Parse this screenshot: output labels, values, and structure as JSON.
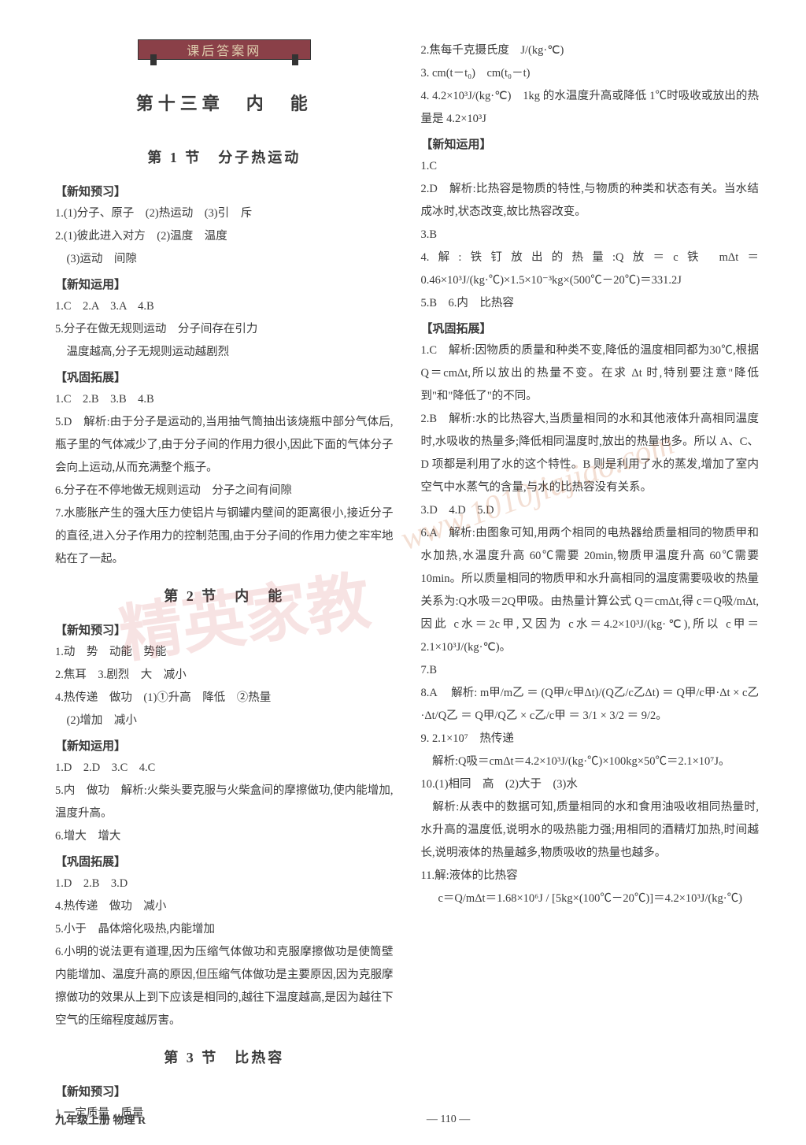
{
  "header_banner": "课后答案网",
  "chapter_title": "第十三章　内　能",
  "section1": {
    "title": "第 1 节　分子热运动",
    "preview_label": "【新知预习】",
    "preview": [
      "1.(1)分子、原子　(2)热运动　(3)引　斥",
      "2.(1)彼此进入对方　(2)温度　温度",
      "　(3)运动　间隙"
    ],
    "apply_label": "【新知运用】",
    "apply": [
      "1.C　2.A　3.A　4.B",
      "5.分子在做无规则运动　分子间存在引力",
      "　温度越高,分子无规则运动越剧烈"
    ],
    "consolidate_label": "【巩固拓展】",
    "consolidate": [
      "1.C　2.B　3.B　4.B",
      "5.D　解析:由于分子是运动的,当用抽气筒抽出该烧瓶中部分气体后,瓶子里的气体减少了,由于分子间的作用力很小,因此下面的气体分子会向上运动,从而充满整个瓶子。",
      "6.分子在不停地做无规则运动　分子之间有间隙",
      "7.水膨胀产生的强大压力使铝片与钢罐内壁间的距离很小,接近分子的直径,进入分子作用力的控制范围,由于分子间的作用力使之牢牢地粘在了一起。"
    ]
  },
  "section2": {
    "title": "第 2 节　内　能",
    "preview_label": "【新知预习】",
    "preview": [
      "1.动　势　动能　势能",
      "2.焦耳　3.剧烈　大　减小",
      "4.热传递　做功　(1)①升高　降低　②热量",
      "　(2)增加　减小"
    ],
    "apply_label": "【新知运用】",
    "apply": [
      "1.D　2.D　3.C　4.C",
      "5.内　做功　解析:火柴头要克服与火柴盒间的摩擦做功,使内能增加,温度升高。",
      "6.增大　增大"
    ],
    "consolidate_label": "【巩固拓展】",
    "consolidate": [
      "1.D　2.B　3.D",
      "4.热传递　做功　减小",
      "5.小于　晶体熔化吸热,内能增加",
      "6.小明的说法更有道理,因为压缩气体做功和克服摩擦做功是使筒壁内能增加、温度升高的原因,但压缩气体做功是主要原因,因为克服摩擦做功的效果从上到下应该是相同的,越往下温度越高,是因为越往下空气的压缩程度越厉害。"
    ]
  },
  "section3": {
    "title": "第 3 节　比热容",
    "preview_label": "【新知预习】",
    "preview_left": [
      "1.一定质量　质量"
    ],
    "preview_right": [
      "2.焦每千克摄氏度　J/(kg·℃)",
      "3. cm(t－t₀)　cm(t₀－t)",
      "4. 4.2×10³J/(kg·℃)　1kg 的水温度升高或降低 1℃时吸收或放出的热量是 4.2×10³J"
    ],
    "apply_label": "【新知运用】",
    "apply": [
      "1.C",
      "2.D　解析:比热容是物质的特性,与物质的种类和状态有关。当水结成冰时,状态改变,故比热容改变。",
      "3.B",
      "4.解:铁钉放出的热量:Q放＝c铁 mΔt＝0.46×10³J/(kg·℃)×1.5×10⁻³kg×(500℃－20℃)＝331.2J",
      "5.B　6.内　比热容"
    ],
    "consolidate_label": "【巩固拓展】",
    "consolidate": [
      "1.C　解析:因物质的质量和种类不变,降低的温度相同都为30℃,根据 Q＝cmΔt,所以放出的热量不变。在求 Δt 时,特别要注意\"降低到\"和\"降低了\"的不同。",
      "2.B　解析:水的比热容大,当质量相同的水和其他液体升高相同温度时,水吸收的热量多;降低相同温度时,放出的热量也多。所以 A、C、D 项都是利用了水的这个特性。B 则是利用了水的蒸发,增加了室内空气中水蒸气的含量,与水的比热容没有关系。",
      "3.D　4.D　5.D",
      "6.A　解析:由图象可知,用两个相同的电热器给质量相同的物质甲和水加热,水温度升高 60℃需要 20min,物质甲温度升高 60℃需要 10min。所以质量相同的物质甲和水升高相同的温度需要吸收的热量关系为:Q水吸＝2Q甲吸。由热量计算公式 Q＝cmΔt,得 c＝Q吸/mΔt,因此 c水＝2c甲,又因为 c水＝4.2×10³J/(kg·℃),所以 c甲＝2.1×10³J/(kg·℃)。",
      "7.B",
      "8.A",
      "9. 2.1×10⁷　热传递",
      "　解析:Q吸＝cmΔt＝4.2×10³J/(kg·℃)×100kg×50℃＝2.1×10⁷J。",
      "10.(1)相同　高　(2)大于　(3)水",
      "　解析:从表中的数据可知,质量相同的水和食用油吸收相同热量时,水升高的温度低,说明水的吸热能力强;用相同的酒精灯加热,时间越长,说明液体的热量越多,物质吸收的热量也越多。",
      "11.解:液体的比热容"
    ],
    "item8_formula": "解析: m甲/m乙 ＝ (Q甲/c甲Δt)/(Q乙/c乙Δt) ＝ Q甲/c甲·Δt × c乙·Δt/Q乙 ＝ Q甲/Q乙 × c乙/c甲 ＝ 3/1 × 3/2 ＝ 9/2。",
    "item11_formula": "c＝Q/mΔt＝1.68×10⁶J / [5kg×(100℃－20℃)]＝4.2×10³J/(kg·℃)"
  },
  "footer": {
    "label": "九年级上册 物理 R",
    "page": "— 110 —"
  },
  "watermarks": {
    "wm1": "精英家教",
    "wm2": "www.1010jiajiao.com"
  }
}
